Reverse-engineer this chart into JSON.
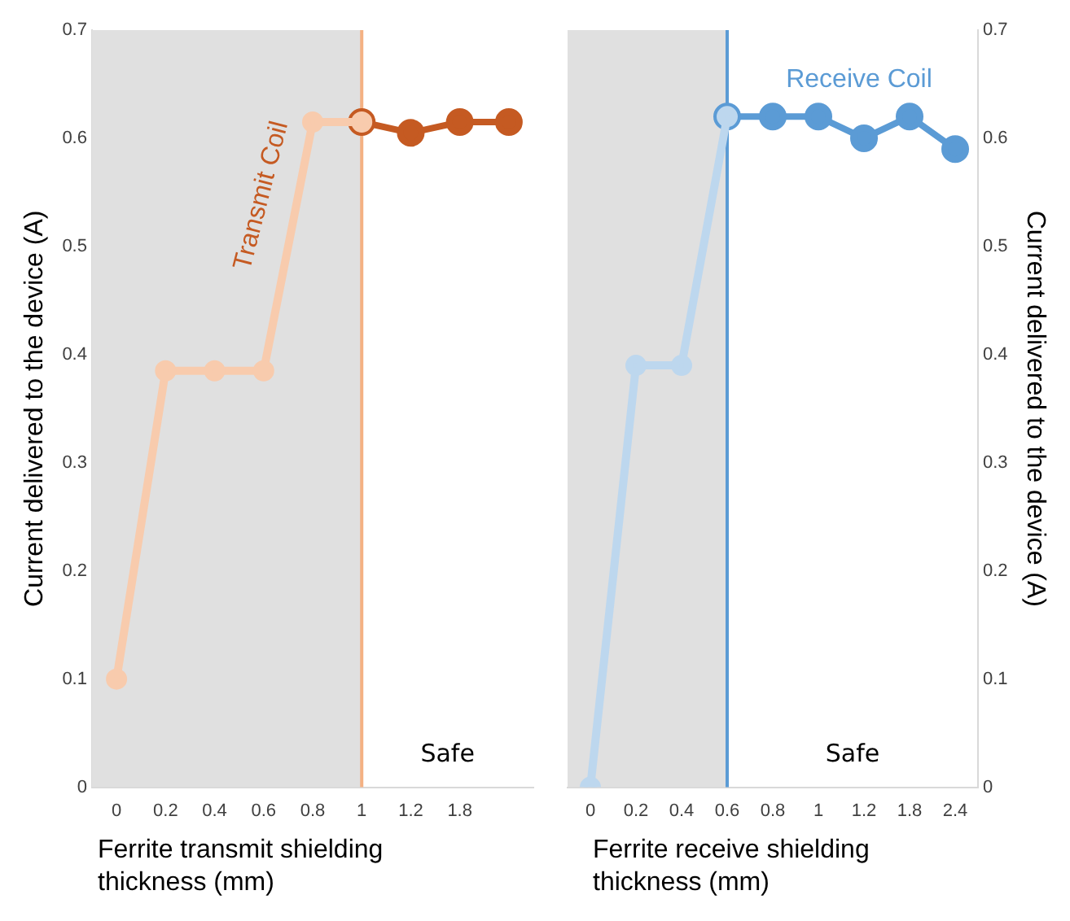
{
  "chart_data": [
    {
      "type": "line",
      "categories": [
        "0",
        "0.2",
        "0.4",
        "0.6",
        "0.8",
        "1",
        "1.2",
        "1.8",
        null
      ],
      "series": [
        {
          "color": "#f8cbad",
          "values": [
            0.1,
            0.385,
            0.385,
            0.385,
            0.615,
            0.615,
            null,
            null,
            null
          ]
        },
        {
          "name": "Transmit Coil",
          "color": "#c55a22",
          "values": [
            null,
            null,
            null,
            null,
            null,
            0.615,
            0.605,
            0.615,
            0.615
          ]
        }
      ],
      "xlabel": "Ferrite transmit shielding thickness (mm)",
      "ylabel": "Current delivered to the device (A)",
      "ylim": [
        0,
        0.7
      ],
      "yticks": [
        0,
        0.1,
        0.2,
        0.3,
        0.4,
        0.5,
        0.6,
        0.7
      ],
      "bands": [
        {
          "axis": "x",
          "from": "0",
          "to": "1",
          "color": "#e0e0e0"
        }
      ],
      "ref_lines": [
        {
          "axis": "x",
          "value": "1",
          "color": "#f4b183"
        }
      ],
      "annotations": [
        "Safe"
      ],
      "grid": false,
      "legend": false,
      "marker": "circle"
    },
    {
      "type": "line",
      "categories": [
        "0",
        "0.2",
        "0.4",
        "0.6",
        "0.8",
        "1",
        "1.2",
        "1.8",
        "2.4"
      ],
      "series": [
        {
          "color": "#bdd7ee",
          "axis": "y2",
          "values": [
            0,
            0.39,
            0.39,
            0.62,
            null,
            null,
            null,
            null,
            null
          ]
        },
        {
          "name": "Receive Coil",
          "color": "#5b9bd5",
          "axis": "y2",
          "values": [
            null,
            null,
            null,
            0.62,
            0.62,
            0.62,
            0.6,
            0.62,
            0.59
          ]
        }
      ],
      "xlabel": "Ferrite receive shielding thickness (mm)",
      "y2label": "Current delivered to the device (A)",
      "y2lim": [
        0,
        0.7
      ],
      "y2ticks": [
        0,
        0.1,
        0.2,
        0.3,
        0.4,
        0.5,
        0.6,
        0.7
      ],
      "bands": [
        {
          "axis": "x",
          "from": "0",
          "to": "0.6",
          "color": "#e0e0e0"
        }
      ],
      "ref_lines": [
        {
          "axis": "x",
          "value": "0.6",
          "color": "#5b9bd5"
        }
      ],
      "annotations": [
        "Safe"
      ],
      "grid": false,
      "legend": false,
      "marker": "circle"
    }
  ]
}
